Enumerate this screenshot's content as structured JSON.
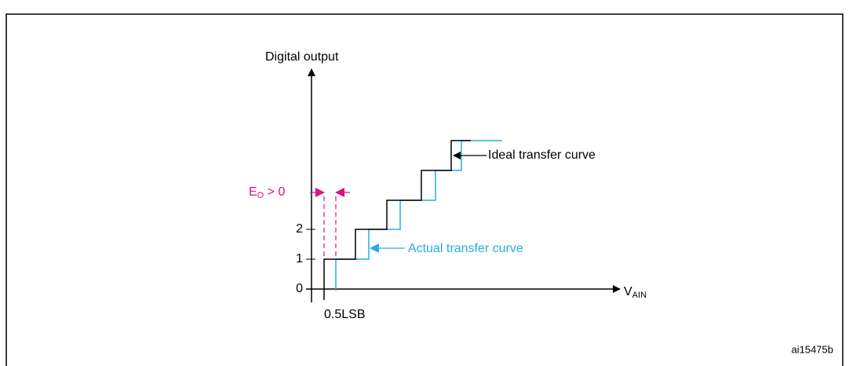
{
  "y_axis_label": "Digital output",
  "y_ticks": [
    "0",
    "1",
    "2"
  ],
  "x_axis_label": {
    "main": "V",
    "subscript": "AIN"
  },
  "offset_label": {
    "main": "E",
    "subscript": "O",
    "rest": " > 0"
  },
  "ideal_label": "Ideal transfer curve",
  "actual_label": "Actual transfer curve",
  "lsb_label": "0.5LSB",
  "figure_id": "ai15475b"
}
